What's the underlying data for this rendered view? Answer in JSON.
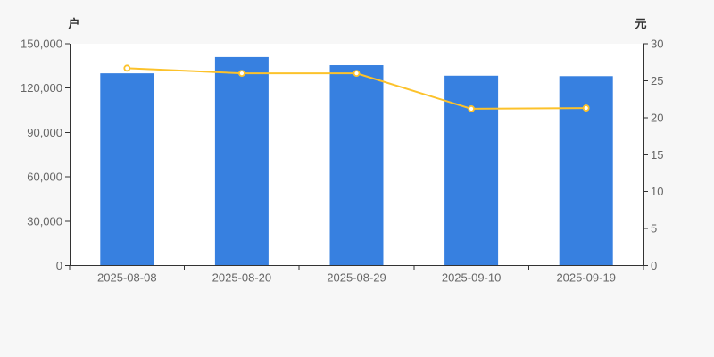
{
  "chart_data": {
    "type": "bar-line-combo",
    "title": "",
    "categories": [
      "2025-08-08",
      "2025-08-20",
      "2025-08-29",
      "2025-09-10",
      "2025-09-19"
    ],
    "series": [
      {
        "name": "户",
        "type": "bar",
        "axis": "left",
        "values": [
          130000,
          141000,
          135500,
          128400,
          128100
        ]
      },
      {
        "name": "元",
        "type": "line",
        "axis": "right",
        "values": [
          26.7,
          26.0,
          26.0,
          21.2,
          21.3
        ]
      }
    ],
    "left_axis": {
      "name": "户",
      "min": 0,
      "max": 150000,
      "tick_step": 30000,
      "tick_labels": [
        "0",
        "30,000",
        "60,000",
        "90,000",
        "120,000",
        "150,000"
      ]
    },
    "right_axis": {
      "name": "元",
      "min": 0,
      "max": 30,
      "tick_step": 5,
      "tick_labels": [
        "0",
        "5",
        "10",
        "15",
        "20",
        "25",
        "30"
      ]
    },
    "grid": false,
    "legend_visible": false
  },
  "colors": {
    "background": "#f7f7f7",
    "plot_background": "#ffffff",
    "axis_line": "#333333",
    "tick_mark": "#333333",
    "tick_label": "#666666",
    "axis_name": "#333333",
    "bar": "#3780e0",
    "line": "#fcc22b",
    "marker_fill": "#ffffff"
  }
}
